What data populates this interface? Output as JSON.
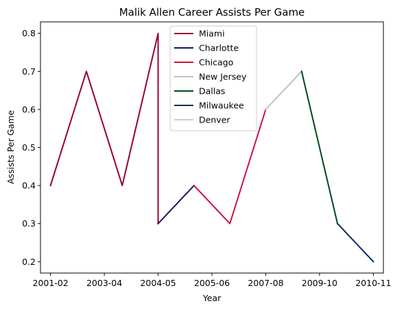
{
  "chart_data": {
    "type": "line",
    "title": "Malik Allen Career Assists Per Game",
    "xlabel": "Year",
    "ylabel": "Assists Per Game",
    "x_ticks": [
      "2001-02",
      "2003-04",
      "2004-05",
      "2005-06",
      "2007-08",
      "2009-10",
      "2010-11"
    ],
    "y_ticks": [
      0.2,
      0.3,
      0.4,
      0.5,
      0.6,
      0.7,
      0.8
    ],
    "ylim": [
      0.17,
      0.83
    ],
    "xlim": [
      -0.28,
      9.28
    ],
    "grid": false,
    "legend_position": "top-center",
    "series": [
      {
        "name": "Miami",
        "color": "#98002E",
        "points": [
          [
            0,
            0.4
          ],
          [
            1,
            0.7
          ],
          [
            2,
            0.4
          ],
          [
            3,
            0.8
          ],
          [
            3,
            0.3
          ]
        ]
      },
      {
        "name": "Charlotte",
        "color": "#1D1160",
        "points": [
          [
            3,
            0.3
          ],
          [
            4,
            0.4
          ]
        ]
      },
      {
        "name": "Chicago",
        "color": "#CE1141",
        "points": [
          [
            4,
            0.4
          ],
          [
            5,
            0.3
          ],
          [
            6,
            0.6
          ]
        ]
      },
      {
        "name": "New Jersey",
        "color": "#BEC0C2",
        "points": [
          [
            6,
            0.6
          ],
          [
            7,
            0.7
          ]
        ]
      },
      {
        "name": "Dallas",
        "color": "#00471B",
        "points": [
          [
            7,
            0.7
          ],
          [
            8,
            0.3
          ]
        ]
      },
      {
        "name": "Milwaukee",
        "color": "#002B5C",
        "points": [
          [
            8,
            0.3
          ],
          [
            9,
            0.2
          ]
        ]
      },
      {
        "name": "Denver",
        "color": "#C4CED4",
        "points": []
      }
    ]
  }
}
